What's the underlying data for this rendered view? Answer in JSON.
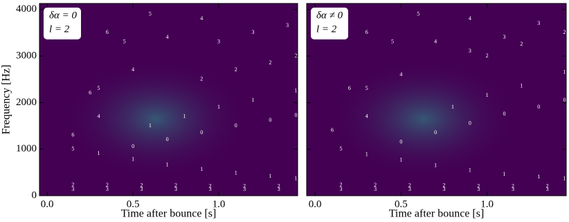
{
  "charts": [
    {
      "type": "spectrogram",
      "annotation": [
        "δα = 0",
        "l = 2"
      ],
      "xlabel": "Time after bounce [s]",
      "ylabel": "Frequency [Hz]",
      "xlim": [
        -0.045,
        1.46
      ],
      "ylim": [
        0,
        4130
      ],
      "xticks": [
        {
          "value": 0,
          "label": "0.0"
        },
        0.5,
        {
          "value": 1,
          "label": "1.0"
        }
      ],
      "yticks": [
        0,
        1000,
        2000,
        3000,
        4000
      ],
      "ytick_labels": true,
      "background": "#440154",
      "series": [
        {
          "name": "0",
          "color": "#ffffff",
          "x": [
            0.5,
            0.7,
            0.9,
            1.1,
            1.3,
            1.45
          ],
          "values": [
            1050,
            1200,
            1350,
            1500,
            1620,
            1720
          ]
        },
        {
          "name": "1",
          "color": "#ffffff",
          "x": [
            0.6,
            0.8,
            1.0,
            1.2,
            1.45
          ],
          "values": [
            1500,
            1700,
            1900,
            2050,
            2250
          ]
        },
        {
          "name": "1",
          "color": "#ffffff",
          "x": [
            0.3,
            0.5,
            0.7,
            0.9,
            1.1,
            1.3,
            1.45
          ],
          "values": [
            900,
            780,
            660,
            560,
            480,
            410,
            360
          ]
        },
        {
          "name": "2",
          "color": "#ffffff",
          "x": [
            0.15,
            0.35,
            0.55,
            0.75,
            0.95,
            1.15,
            1.35
          ],
          "values": [
            230,
            220,
            210,
            210,
            200,
            200,
            200
          ]
        },
        {
          "name": "2",
          "color": "#ffffff",
          "x": [
            0.9,
            1.1,
            1.3,
            1.45
          ],
          "values": [
            2500,
            2700,
            2850,
            3000
          ]
        },
        {
          "name": "3",
          "color": "#ffffff",
          "x": [
            0.15,
            0.35,
            0.55,
            0.75,
            0.95,
            1.15,
            1.35
          ],
          "values": [
            130,
            130,
            130,
            130,
            130,
            130,
            130
          ]
        },
        {
          "name": "3",
          "color": "#ffffff",
          "x": [
            1.0,
            1.2,
            1.4
          ],
          "values": [
            3300,
            3500,
            3650
          ]
        },
        {
          "name": "4",
          "color": "#ffffff",
          "x": [
            0.3,
            0.5,
            0.7,
            0.9
          ],
          "values": [
            1700,
            2700,
            3400,
            3800
          ]
        },
        {
          "name": "5",
          "color": "#ffffff",
          "x": [
            0.15,
            0.3,
            0.45,
            0.6
          ],
          "values": [
            1000,
            2300,
            3300,
            3900
          ]
        },
        {
          "name": "6",
          "color": "#ffffff",
          "x": [
            0.15,
            0.25,
            0.35
          ],
          "values": [
            1300,
            2200,
            3500
          ]
        }
      ]
    },
    {
      "type": "spectrogram",
      "annotation": [
        "δα ≠ 0",
        "l = 2"
      ],
      "xlabel": "Time after bounce [s]",
      "xlim": [
        -0.049,
        1.46
      ],
      "ylim": [
        0,
        4130
      ],
      "xticks": [
        {
          "value": 0,
          "label": "0.0"
        },
        0.5,
        {
          "value": 1,
          "label": "1.0"
        }
      ],
      "yticks": [
        0,
        1000,
        2000,
        3000,
        4000
      ],
      "ytick_labels": false,
      "background": "#440154",
      "series": [
        {
          "name": "0",
          "color": "#ffffff",
          "x": [
            0.5,
            0.7,
            0.9,
            1.1,
            1.3,
            1.45
          ],
          "values": [
            1150,
            1350,
            1550,
            1750,
            1900,
            2050
          ]
        },
        {
          "name": "1",
          "color": "#ffffff",
          "x": [
            0.8,
            1.0,
            1.2,
            1.45
          ],
          "values": [
            1900,
            2150,
            2350,
            2650
          ]
        },
        {
          "name": "1",
          "color": "#ffffff",
          "x": [
            0.3,
            0.5,
            0.7,
            0.9,
            1.1,
            1.3,
            1.45
          ],
          "values": [
            880,
            760,
            640,
            540,
            460,
            400,
            360
          ]
        },
        {
          "name": "2",
          "color": "#ffffff",
          "x": [
            0.15,
            0.35,
            0.55,
            0.75,
            0.95,
            1.15,
            1.35
          ],
          "values": [
            230,
            220,
            210,
            210,
            200,
            200,
            200
          ]
        },
        {
          "name": "2",
          "color": "#ffffff",
          "x": [
            1.0,
            1.2,
            1.45
          ],
          "values": [
            3000,
            3250,
            3500
          ]
        },
        {
          "name": "3",
          "color": "#ffffff",
          "x": [
            0.15,
            0.35,
            0.55,
            0.75,
            0.95,
            1.15,
            1.35
          ],
          "values": [
            130,
            130,
            130,
            130,
            130,
            130,
            130
          ]
        },
        {
          "name": "3",
          "color": "#ffffff",
          "x": [
            0.9,
            1.1,
            1.3
          ],
          "values": [
            3100,
            3400,
            3700
          ]
        },
        {
          "name": "4",
          "color": "#ffffff",
          "x": [
            0.3,
            0.5,
            0.7,
            0.9
          ],
          "values": [
            1700,
            2600,
            3300,
            3800
          ]
        },
        {
          "name": "5",
          "color": "#ffffff",
          "x": [
            0.15,
            0.3,
            0.45,
            0.6
          ],
          "values": [
            1000,
            2300,
            3300,
            3900
          ]
        },
        {
          "name": "6",
          "color": "#ffffff",
          "x": [
            0.1,
            0.2,
            0.3
          ],
          "values": [
            1400,
            2300,
            3500
          ]
        }
      ]
    }
  ]
}
